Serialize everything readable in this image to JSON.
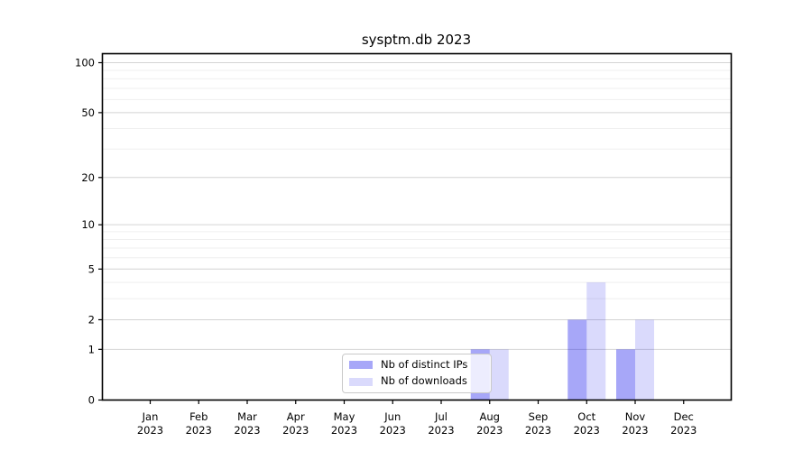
{
  "chart_data": {
    "type": "bar",
    "title": "sysptm.db 2023",
    "xlabel": "",
    "ylabel": "",
    "yscale": "log1p",
    "ylim": [
      0,
      113
    ],
    "y_major_ticks": [
      0,
      1,
      2,
      5,
      10,
      20,
      50,
      100
    ],
    "y_minor_gridlines": [
      3,
      4,
      6,
      7,
      8,
      9,
      30,
      40,
      60,
      70,
      80,
      90
    ],
    "grid": "horizontal",
    "legend_position": "lower-center-inside",
    "categories": [
      {
        "month": "Jan",
        "year": "2023"
      },
      {
        "month": "Feb",
        "year": "2023"
      },
      {
        "month": "Mar",
        "year": "2023"
      },
      {
        "month": "Apr",
        "year": "2023"
      },
      {
        "month": "May",
        "year": "2023"
      },
      {
        "month": "Jun",
        "year": "2023"
      },
      {
        "month": "Jul",
        "year": "2023"
      },
      {
        "month": "Aug",
        "year": "2023"
      },
      {
        "month": "Sep",
        "year": "2023"
      },
      {
        "month": "Oct",
        "year": "2023"
      },
      {
        "month": "Nov",
        "year": "2023"
      },
      {
        "month": "Dec",
        "year": "2023"
      }
    ],
    "series": [
      {
        "name": "Nb of distinct IPs",
        "color": "rgba(10,10,235,0.36)",
        "values": [
          0,
          0,
          0,
          0,
          0,
          0,
          0,
          1,
          0,
          2,
          1,
          0
        ]
      },
      {
        "name": "Nb of downloads",
        "color": "rgba(10,10,235,0.15)",
        "values": [
          0,
          0,
          0,
          0,
          0,
          0,
          0,
          1,
          0,
          4,
          2,
          0
        ]
      }
    ],
    "colors": {
      "background": "#ffffff",
      "axis": "#000000",
      "tick_text": "#000000",
      "major_grid": "#d4d4d4",
      "minor_grid": "#efefef",
      "legend_border": "#c9c9c9"
    }
  },
  "legend": {
    "items": [
      {
        "label": "Nb of distinct IPs",
        "color": "rgba(10,10,235,0.36)"
      },
      {
        "label": "Nb of downloads",
        "color": "rgba(10,10,235,0.15)"
      }
    ]
  }
}
